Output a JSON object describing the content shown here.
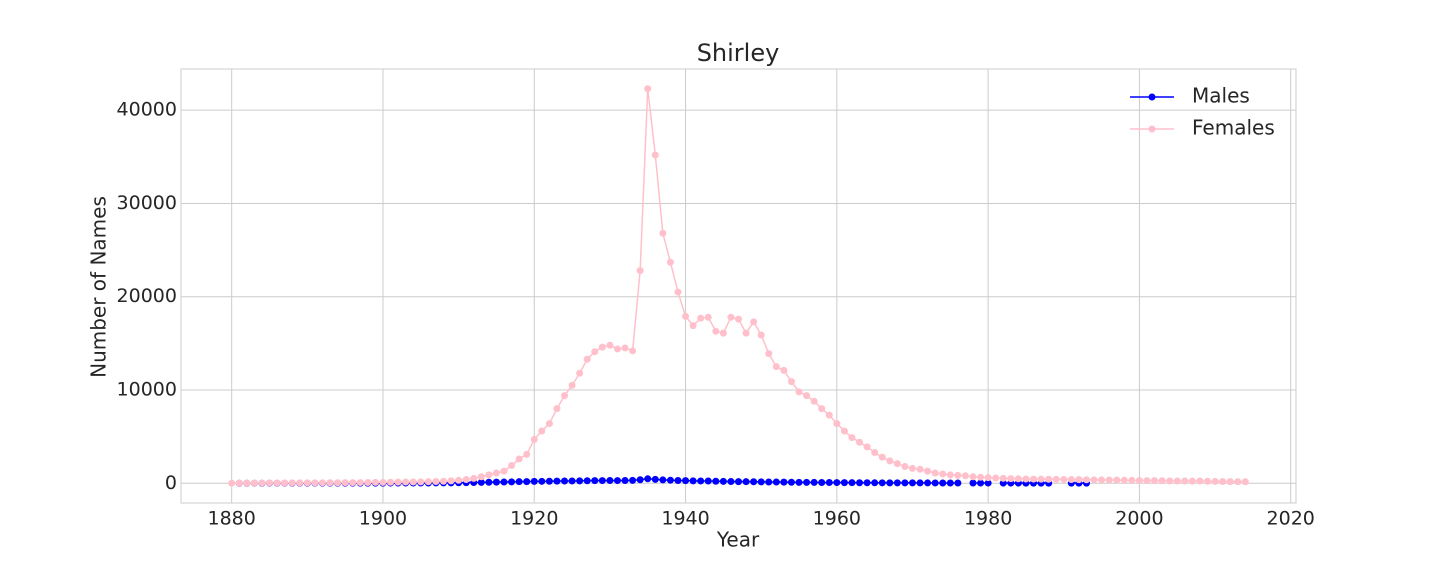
{
  "chart_data": {
    "type": "line",
    "title": "Shirley",
    "x_label": "Year",
    "y_label": "Number of Names",
    "x": [
      1880,
      1881,
      1882,
      1883,
      1884,
      1885,
      1886,
      1887,
      1888,
      1889,
      1890,
      1891,
      1892,
      1893,
      1894,
      1895,
      1896,
      1897,
      1898,
      1899,
      1900,
      1901,
      1902,
      1903,
      1904,
      1905,
      1906,
      1907,
      1908,
      1909,
      1910,
      1911,
      1912,
      1913,
      1914,
      1915,
      1916,
      1917,
      1918,
      1919,
      1920,
      1921,
      1922,
      1923,
      1924,
      1925,
      1926,
      1927,
      1928,
      1929,
      1930,
      1931,
      1932,
      1933,
      1934,
      1935,
      1936,
      1937,
      1938,
      1939,
      1940,
      1941,
      1942,
      1943,
      1944,
      1945,
      1946,
      1947,
      1948,
      1949,
      1950,
      1951,
      1952,
      1953,
      1954,
      1955,
      1956,
      1957,
      1958,
      1959,
      1960,
      1961,
      1962,
      1963,
      1964,
      1965,
      1966,
      1967,
      1968,
      1969,
      1970,
      1971,
      1972,
      1973,
      1974,
      1975,
      1976,
      1977,
      1978,
      1979,
      1980,
      1981,
      1982,
      1983,
      1984,
      1985,
      1986,
      1987,
      1988,
      1989,
      1990,
      1991,
      1992,
      1993,
      1994,
      1995,
      1996,
      1997,
      1998,
      1999,
      2000,
      2001,
      2002,
      2003,
      2004,
      2005,
      2006,
      2007,
      2008,
      2009,
      2010,
      2011,
      2012,
      2013,
      2014
    ],
    "series": [
      {
        "name": "Males",
        "color": "#0000ff",
        "values": [
          null,
          6,
          5,
          7,
          6,
          8,
          7,
          9,
          8,
          10,
          9,
          11,
          10,
          12,
          11,
          13,
          12,
          14,
          15,
          16,
          18,
          20,
          22,
          24,
          26,
          28,
          32,
          36,
          40,
          45,
          55,
          65,
          80,
          95,
          110,
          120,
          130,
          150,
          170,
          180,
          200,
          210,
          220,
          230,
          240,
          250,
          260,
          270,
          280,
          290,
          300,
          290,
          300,
          310,
          380,
          480,
          420,
          360,
          330,
          300,
          280,
          260,
          250,
          240,
          220,
          200,
          190,
          180,
          170,
          160,
          150,
          140,
          130,
          120,
          110,
          100,
          95,
          90,
          85,
          80,
          75,
          70,
          65,
          60,
          55,
          50,
          48,
          46,
          44,
          42,
          40,
          38,
          36,
          34,
          32,
          30,
          28,
          null,
          26,
          25,
          24,
          null,
          22,
          21,
          20,
          19,
          18,
          17,
          16,
          null,
          null,
          14,
          13,
          12,
          null,
          null,
          null,
          null,
          null,
          null,
          null,
          null,
          null,
          null,
          null,
          null,
          null,
          null,
          null,
          null,
          null,
          null,
          null,
          null,
          null
        ]
      },
      {
        "name": "Females",
        "color": "#ffc0cb",
        "values": [
          8,
          12,
          15,
          18,
          22,
          25,
          28,
          30,
          35,
          40,
          42,
          45,
          50,
          55,
          60,
          65,
          70,
          75,
          80,
          90,
          100,
          110,
          120,
          130,
          140,
          150,
          170,
          190,
          220,
          260,
          320,
          400,
          520,
          700,
          900,
          1100,
          1300,
          1900,
          2600,
          3100,
          4700,
          5600,
          6400,
          8000,
          9400,
          10500,
          11800,
          13300,
          14100,
          14600,
          14800,
          14400,
          14500,
          14200,
          22800,
          42300,
          35200,
          26800,
          23700,
          20500,
          17900,
          16900,
          17700,
          17800,
          16300,
          16100,
          17800,
          17600,
          16100,
          17300,
          15900,
          13900,
          12500,
          12100,
          10900,
          9800,
          9400,
          8800,
          8000,
          7300,
          6400,
          5600,
          4900,
          4400,
          3900,
          3300,
          2800,
          2400,
          2100,
          1800,
          1600,
          1500,
          1300,
          1100,
          1000,
          900,
          850,
          800,
          700,
          650,
          600,
          560,
          530,
          500,
          480,
          460,
          450,
          440,
          430,
          420,
          410,
          400,
          390,
          380,
          370,
          360,
          350,
          340,
          330,
          310,
          300,
          290,
          280,
          270,
          260,
          250,
          240,
          230,
          250,
          220,
          200,
          190,
          180,
          170,
          160
        ]
      }
    ],
    "xlim": [
      1873.3,
      2020.7
    ],
    "ylim": [
      -2115,
      44415
    ],
    "xticks": [
      1880,
      1900,
      1920,
      1940,
      1960,
      1980,
      2000,
      2020
    ],
    "yticks": [
      0,
      10000,
      20000,
      30000,
      40000
    ],
    "grid": true,
    "legend": "upper right"
  }
}
